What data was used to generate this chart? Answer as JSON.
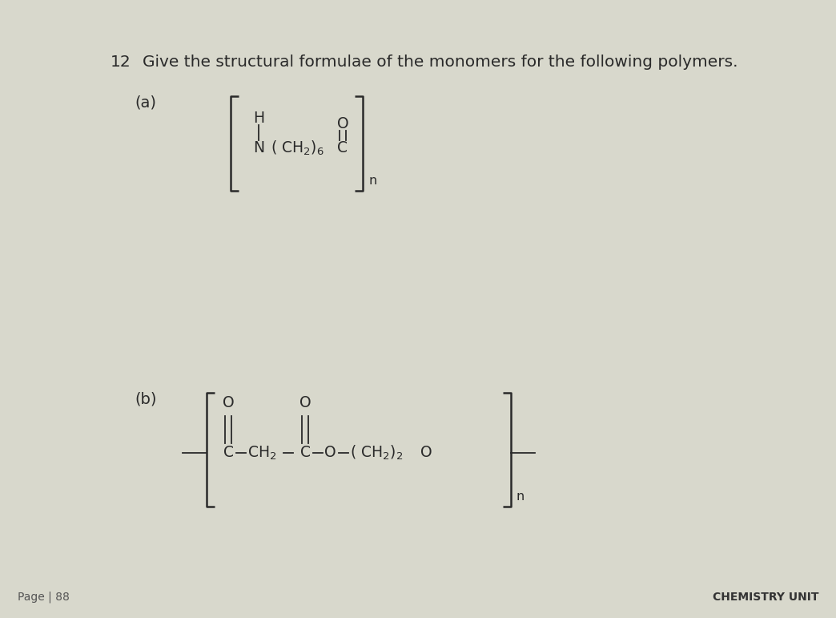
{
  "bg_color": "#d8d8cc",
  "text_color": "#2a2a2a",
  "question_num": "12",
  "question_text": "Give the structural formulae of the monomers for the following polymers.",
  "part_a_label": "(a)",
  "part_b_label": "(b)",
  "footer_left": "Page | 88",
  "footer_right": "CHEMISTRY UNIT",
  "font_size_question": 14.5,
  "font_size_label": 14,
  "font_size_chem": 13.5,
  "font_size_footer": 10
}
